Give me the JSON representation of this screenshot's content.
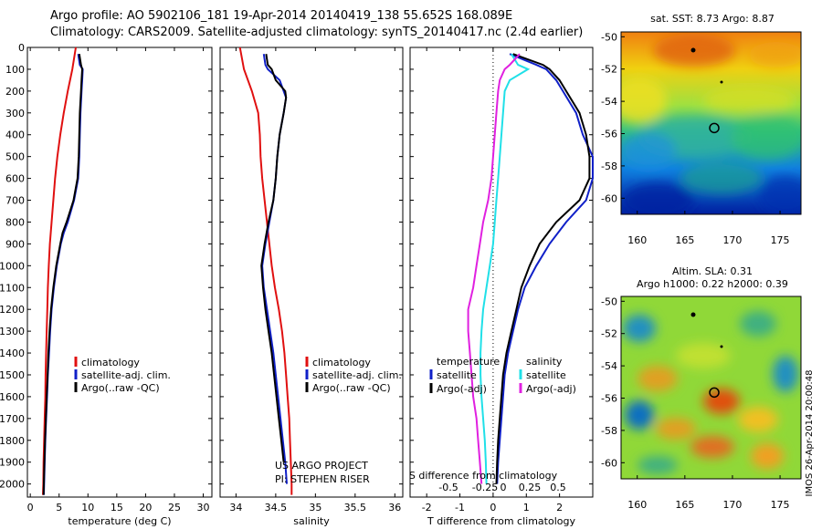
{
  "header": {
    "line1": "Argo profile: AO 5902106_181 19-Apr-2014 20140419_138 55.652S 168.089E",
    "line2": "Climatology: CARS2009. Satellite-adjusted climatology: synTS_20140417.nc (2.4d earlier)"
  },
  "colors": {
    "climatology": "#e01010",
    "satellite": "#1020c8",
    "argo": "#000000",
    "sat_salinity": "#20e0e8",
    "argo_salinity": "#e020e0"
  },
  "depth_axis": {
    "ticks": [
      0,
      100,
      200,
      300,
      400,
      500,
      600,
      700,
      800,
      900,
      1000,
      1100,
      1200,
      1300,
      1400,
      1500,
      1600,
      1700,
      1800,
      1900,
      2000
    ],
    "range": [
      0,
      2060
    ]
  },
  "chart_data": [
    {
      "type": "line",
      "id": "temperature",
      "xlabel": "temperature (deg C)",
      "ylabel": "",
      "xlim": [
        -0.5,
        31.5
      ],
      "xticks": [
        0,
        5,
        10,
        15,
        20,
        25,
        30
      ],
      "legend": [
        "climatology",
        "satellite-adj. clim.",
        "Argo(..raw -QC)"
      ],
      "series": [
        {
          "name": "climatology",
          "color": "#e01010",
          "depth": [
            0,
            100,
            200,
            300,
            400,
            500,
            600,
            700,
            800,
            900,
            1000,
            1100,
            1200,
            1300,
            1400,
            1500,
            1600,
            1700,
            1800,
            1900,
            2000,
            2050
          ],
          "values": [
            7.9,
            7.3,
            6.5,
            5.8,
            5.2,
            4.7,
            4.3,
            4.0,
            3.7,
            3.4,
            3.2,
            3.05,
            2.95,
            2.85,
            2.75,
            2.65,
            2.6,
            2.5,
            2.4,
            2.3,
            2.25,
            2.2
          ]
        },
        {
          "name": "satellite-adj. clim.",
          "color": "#1020c8",
          "depth": [
            30,
            80,
            100,
            150,
            200,
            300,
            400,
            500,
            600,
            700,
            800,
            850,
            900,
            1000,
            1100,
            1200,
            1300,
            1400,
            1500,
            1600,
            1700,
            1800,
            1900,
            2000,
            2050
          ],
          "values": [
            8.3,
            8.6,
            9.1,
            9.0,
            8.9,
            8.7,
            8.6,
            8.5,
            8.3,
            7.6,
            6.5,
            5.8,
            5.3,
            4.6,
            4.1,
            3.7,
            3.45,
            3.25,
            3.05,
            2.9,
            2.75,
            2.6,
            2.5,
            2.4,
            2.35
          ]
        },
        {
          "name": "Argo(..raw -QC)",
          "color": "#000000",
          "depth": [
            30,
            80,
            100,
            150,
            200,
            300,
            400,
            500,
            600,
            700,
            800,
            850,
            900,
            1000,
            1100,
            1200,
            1300,
            1400,
            1500,
            1600,
            1700,
            1800,
            1900,
            2000,
            2050
          ],
          "values": [
            8.5,
            8.8,
            9.0,
            8.9,
            8.8,
            8.6,
            8.5,
            8.4,
            8.2,
            7.5,
            6.3,
            5.6,
            5.2,
            4.5,
            4.0,
            3.6,
            3.35,
            3.15,
            3.0,
            2.85,
            2.7,
            2.55,
            2.45,
            2.35,
            2.3
          ]
        }
      ]
    },
    {
      "type": "line",
      "id": "salinity",
      "xlabel": "salinity",
      "ylabel": "",
      "xlim": [
        33.8,
        36.1
      ],
      "xticks": [
        34,
        34.5,
        35,
        35.5,
        36
      ],
      "legend": [
        "climatology",
        "satellite-adj. clim.",
        "Argo(..raw -QC)"
      ],
      "annotation": [
        "US ARGO PROJECT",
        "PI: STEPHEN RISER"
      ],
      "series": [
        {
          "name": "climatology",
          "color": "#e01010",
          "depth": [
            0,
            100,
            200,
            300,
            400,
            500,
            600,
            700,
            800,
            900,
            1000,
            1100,
            1200,
            1300,
            1400,
            1500,
            1600,
            1700,
            1800,
            1900,
            2000,
            2050
          ],
          "values": [
            34.05,
            34.1,
            34.2,
            34.28,
            34.3,
            34.31,
            34.33,
            34.36,
            34.39,
            34.42,
            34.45,
            34.49,
            34.54,
            34.58,
            34.61,
            34.63,
            34.65,
            34.67,
            34.68,
            34.69,
            34.7,
            34.7
          ]
        },
        {
          "name": "satellite-adj. clim.",
          "color": "#1020c8",
          "depth": [
            30,
            80,
            100,
            150,
            200,
            230,
            300,
            400,
            500,
            600,
            700,
            800,
            900,
            1000,
            1100,
            1200,
            1300,
            1400,
            1500,
            1600,
            1700,
            1800,
            1900,
            2000
          ],
          "values": [
            34.35,
            34.37,
            34.4,
            34.55,
            34.6,
            34.63,
            34.6,
            34.55,
            34.52,
            34.5,
            34.47,
            34.42,
            34.37,
            34.33,
            34.35,
            34.39,
            34.43,
            34.47,
            34.5,
            34.53,
            34.56,
            34.59,
            34.62,
            34.64
          ]
        },
        {
          "name": "Argo(..raw -QC)",
          "color": "#000000",
          "depth": [
            30,
            80,
            100,
            150,
            200,
            230,
            300,
            400,
            500,
            600,
            700,
            800,
            900,
            1000,
            1100,
            1200,
            1300,
            1400,
            1500,
            1600,
            1700,
            1800,
            1900
          ],
          "values": [
            34.38,
            34.4,
            34.45,
            34.5,
            34.62,
            34.63,
            34.6,
            34.55,
            34.52,
            34.5,
            34.47,
            34.41,
            34.36,
            34.32,
            34.34,
            34.37,
            34.41,
            34.45,
            34.48,
            34.51,
            34.54,
            34.57,
            34.6
          ]
        }
      ]
    },
    {
      "type": "line",
      "id": "difference",
      "xlabel": "T difference from climatology",
      "ylabel": "",
      "top_xlabel": "S difference from climatology",
      "xlim": [
        -2.5,
        3.0
      ],
      "xticks": [
        -2,
        -1,
        0,
        1,
        2
      ],
      "top_xticks": [
        "-0.5",
        "-0.25",
        "0",
        "0.25",
        "0.5"
      ],
      "legend_headers": [
        "temperature",
        "salinity"
      ],
      "legend": [
        "satellite",
        "Argo(-adj)",
        "satellite",
        "Argo(-adj)"
      ],
      "series": [
        {
          "name": "satellite",
          "color": "#1020c8",
          "depth": [
            30,
            80,
            100,
            150,
            200,
            300,
            400,
            500,
            600,
            700,
            800,
            900,
            1000,
            1100,
            1200,
            1300,
            1400,
            1500,
            1600,
            1700,
            1800,
            1900,
            2000
          ],
          "values": [
            0.5,
            1.3,
            1.6,
            1.9,
            2.1,
            2.5,
            2.7,
            3.0,
            3.0,
            2.8,
            2.2,
            1.7,
            1.3,
            0.95,
            0.75,
            0.6,
            0.45,
            0.35,
            0.3,
            0.25,
            0.2,
            0.15,
            0.12
          ]
        },
        {
          "name": "Argo(-adj)",
          "color": "#000000",
          "depth": [
            30,
            80,
            100,
            150,
            200,
            300,
            400,
            500,
            600,
            700,
            800,
            900,
            1000,
            1100,
            1200,
            1300,
            1400,
            1500,
            1600,
            1700,
            1800,
            1900,
            2000
          ],
          "values": [
            0.6,
            1.5,
            1.7,
            2.0,
            2.2,
            2.6,
            2.8,
            2.9,
            2.9,
            2.6,
            1.9,
            1.4,
            1.1,
            0.85,
            0.7,
            0.55,
            0.4,
            0.3,
            0.25,
            0.2,
            0.15,
            0.12,
            0.1
          ]
        },
        {
          "name": "satellite",
          "color": "#20e0e8",
          "depth": [
            30,
            80,
            100,
            150,
            200,
            300,
            400,
            500,
            600,
            700,
            800,
            900,
            1000,
            1100,
            1200,
            1300,
            1400,
            1500,
            1600,
            1700,
            1800,
            1900,
            2000
          ],
          "values": [
            0.55,
            0.75,
            1.05,
            0.5,
            0.35,
            0.3,
            0.25,
            0.2,
            0.15,
            0.1,
            0.05,
            0.0,
            -0.1,
            -0.2,
            -0.3,
            -0.35,
            -0.38,
            -0.38,
            -0.35,
            -0.3,
            -0.25,
            -0.22,
            -0.2
          ]
        },
        {
          "name": "Argo(-adj)",
          "color": "#e020e0",
          "depth": [
            30,
            80,
            100,
            150,
            200,
            300,
            400,
            500,
            600,
            700,
            800,
            900,
            1000,
            1100,
            1200,
            1300,
            1400,
            1500,
            1600,
            1700,
            1800,
            1900,
            2000
          ],
          "values": [
            0.8,
            0.5,
            0.35,
            0.2,
            0.15,
            0.1,
            0.05,
            0.0,
            -0.05,
            -0.15,
            -0.3,
            -0.4,
            -0.5,
            -0.6,
            -0.75,
            -0.75,
            -0.7,
            -0.65,
            -0.6,
            -0.5,
            -0.45,
            -0.4,
            -0.35
          ]
        }
      ]
    },
    {
      "type": "heatmap",
      "id": "sst_map",
      "title": "sat. SST: 8.73 Argo: 8.87",
      "xlim": [
        158.3,
        177.2
      ],
      "ylim": [
        -61.0,
        -49.7
      ],
      "xticks": [
        160,
        165,
        170,
        175
      ],
      "yticks": [
        -50,
        -52,
        -54,
        -56,
        -58,
        -60
      ],
      "argo_position": [
        168.089,
        -55.652
      ]
    },
    {
      "type": "heatmap",
      "id": "sla_map",
      "title": "Altim. SLA: 0.31",
      "subtitle": "Argo h1000: 0.22 h2000: 0.39",
      "xlim": [
        158.3,
        177.2
      ],
      "ylim": [
        -61.0,
        -49.7
      ],
      "xticks": [
        160,
        165,
        170,
        175
      ],
      "yticks": [
        -50,
        -52,
        -54,
        -56,
        -58,
        -60
      ],
      "argo_position": [
        168.089,
        -55.652
      ]
    }
  ],
  "watermark": "IMOS 26-Apr-2014 20:00:48"
}
